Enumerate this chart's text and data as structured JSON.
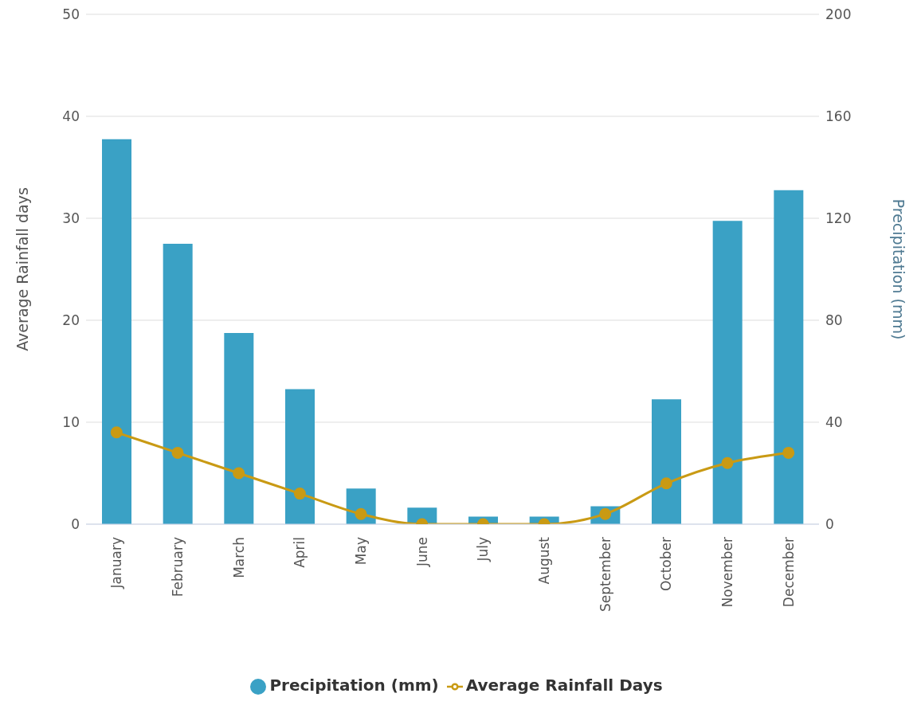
{
  "chart_data": {
    "type": "bar",
    "categories": [
      "January",
      "February",
      "March",
      "April",
      "May",
      "June",
      "July",
      "August",
      "September",
      "October",
      "November",
      "December"
    ],
    "ylabel": "Average Rainfall days",
    "y2label": "Precipitation (mm)",
    "ylim": [
      0,
      50
    ],
    "yticks": [
      0,
      10,
      20,
      30,
      40,
      50
    ],
    "y2lim": [
      0,
      200
    ],
    "y2ticks": [
      0,
      40,
      80,
      120,
      160,
      200
    ],
    "series": [
      {
        "name": "Precipitation (mm)",
        "axis": "y2",
        "color": "#3aa1c5",
        "values": [
          151,
          110,
          75,
          53,
          14,
          6.5,
          3,
          3,
          7,
          49,
          119,
          131
        ]
      },
      {
        "name": "Average Rainfall Days",
        "type": "line",
        "color": "#c99a14",
        "values": [
          9,
          7,
          5,
          3,
          1,
          0,
          0,
          0,
          1,
          4,
          6,
          7
        ]
      }
    ],
    "grid": "y",
    "legend": "bottom",
    "marker": "circle"
  }
}
